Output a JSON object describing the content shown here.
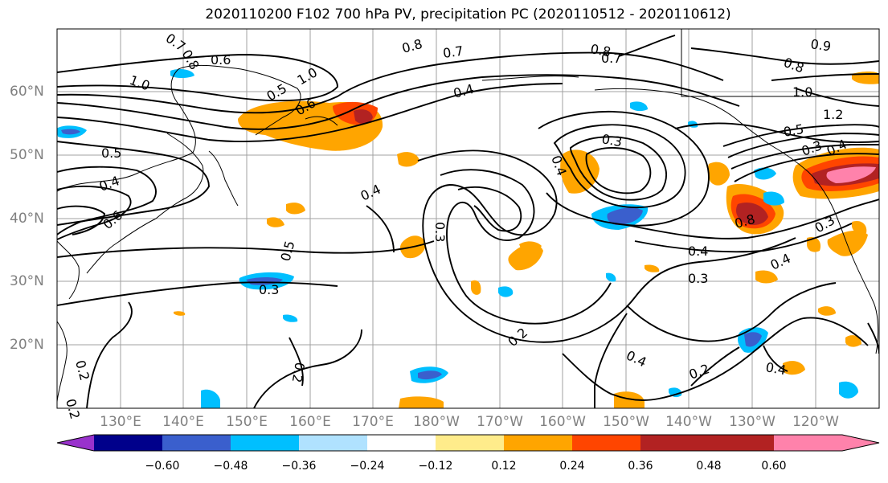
{
  "title": "2020110200 F102 700 hPa PV, precipitation PC (2020110512 - 2020110612)",
  "lat_labels": [
    "60°N",
    "50°N",
    "40°N",
    "30°N",
    "20°N"
  ],
  "lon_labels": [
    "130°E",
    "140°E",
    "150°E",
    "160°E",
    "170°E",
    "180°W",
    "170°W",
    "160°W",
    "150°W",
    "140°W",
    "130°W",
    "120°W"
  ],
  "contour_labels": [
    "0.7",
    "0.8",
    "0.6",
    "1.0",
    "0.8",
    "0.7",
    "0.8",
    "0.7",
    "0.9",
    "0.8",
    "1.0",
    "1.2",
    "0.5",
    "0.3",
    "0.4",
    "0.3",
    "0.4",
    "0.5",
    "0.4",
    "0.6",
    "0.4",
    "0.5",
    "0.3",
    "0.4",
    "0.3",
    "0.4",
    "0.2",
    "0.4",
    "0.2",
    "0.2",
    "0.2",
    "0.3",
    "0.4",
    "0.4",
    "0.3",
    "0.8",
    "1.0",
    "0.6",
    "0.2",
    "0.5"
  ],
  "colorbar": {
    "ticks": [
      "−0.60",
      "−0.48",
      "−0.36",
      "−0.24",
      "−0.12",
      "0.12",
      "0.24",
      "0.36",
      "0.48",
      "0.60"
    ],
    "colors": [
      "#9932CC",
      "#00008B",
      "#3A5FCD",
      "#00BFFF",
      "#B0E2FF",
      "#FFFFFF",
      "#FFEC8B",
      "#FFA500",
      "#FF4500",
      "#B22222",
      "#FF82AB"
    ]
  },
  "map": {
    "lat_range": [
      "10°N",
      "70°N"
    ],
    "lon_range": [
      "120°E",
      "110°W"
    ],
    "gridlines": true,
    "variables": [
      "700 hPa PV (contours)",
      "precipitation PC (shaded)"
    ]
  }
}
